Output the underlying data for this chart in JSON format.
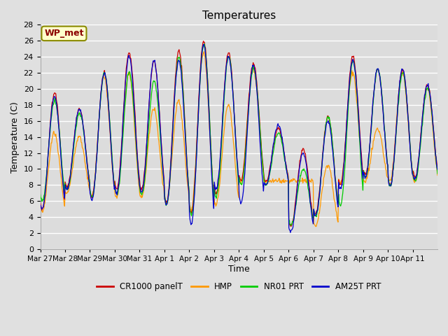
{
  "title": "Temperatures",
  "ylabel": "Temperature (C)",
  "xlabel": "Time",
  "annotation": "WP_met",
  "ylim": [
    0,
    28
  ],
  "background_color": "#e0e0e0",
  "plot_bg_color": "#dcdcdc",
  "grid_color": "#ffffff",
  "series_colors": {
    "CR1000 panelT": "#cc0000",
    "HMP": "#ff9900",
    "NR01 PRT": "#00cc00",
    "AM25T PRT": "#0000cc"
  },
  "x_tick_labels": [
    "Mar 27",
    "Mar 28",
    "Mar 29",
    "Mar 30",
    "Mar 31",
    "Apr 1",
    "Apr 2",
    "Apr 3",
    "Apr 4",
    "Apr 5",
    "Apr 6",
    "Apr 7",
    "Apr 8",
    "Apr 9",
    "Apr 10",
    "Apr 11"
  ],
  "yticks": [
    0,
    2,
    4,
    6,
    8,
    10,
    12,
    14,
    16,
    18,
    20,
    22,
    24,
    26,
    28
  ],
  "peaks_red": [
    19.5,
    17.5,
    22.0,
    24.5,
    23.5,
    24.8,
    26.0,
    24.5,
    23.2,
    15.0,
    12.5,
    16.5,
    24.0,
    22.5,
    22.5,
    20.5
  ],
  "troughs_red": [
    5.0,
    7.8,
    6.5,
    7.5,
    7.5,
    5.8,
    4.5,
    7.0,
    8.5,
    8.5,
    2.8,
    4.5,
    8.0,
    9.2,
    8.0,
    9.0
  ],
  "peaks_orange": [
    14.5,
    14.0,
    21.5,
    22.0,
    17.5,
    18.5,
    24.5,
    18.0,
    22.5,
    8.5,
    8.5,
    10.5,
    22.0,
    15.0,
    22.0,
    20.0
  ],
  "troughs_orange": [
    4.7,
    7.0,
    6.5,
    6.5,
    6.5,
    5.8,
    4.8,
    5.5,
    8.5,
    8.5,
    8.5,
    2.8,
    8.2,
    8.5,
    8.5,
    8.5
  ],
  "peaks_green": [
    18.5,
    17.0,
    22.0,
    22.0,
    21.0,
    24.0,
    25.5,
    24.0,
    22.5,
    14.5,
    10.0,
    16.5,
    23.5,
    22.5,
    22.0,
    20.0
  ],
  "troughs_green": [
    6.0,
    7.5,
    6.5,
    6.8,
    6.8,
    5.5,
    4.2,
    6.5,
    8.0,
    8.0,
    3.0,
    4.2,
    5.5,
    9.0,
    8.0,
    8.5
  ],
  "peaks_blue": [
    19.0,
    17.5,
    22.0,
    24.0,
    23.5,
    23.5,
    25.5,
    24.0,
    23.0,
    15.5,
    12.0,
    16.0,
    23.5,
    22.5,
    22.5,
    20.5
  ],
  "troughs_blue": [
    5.0,
    7.5,
    6.2,
    7.0,
    7.0,
    5.5,
    3.2,
    7.5,
    5.8,
    8.0,
    2.2,
    4.2,
    7.5,
    9.0,
    7.8,
    8.8
  ]
}
